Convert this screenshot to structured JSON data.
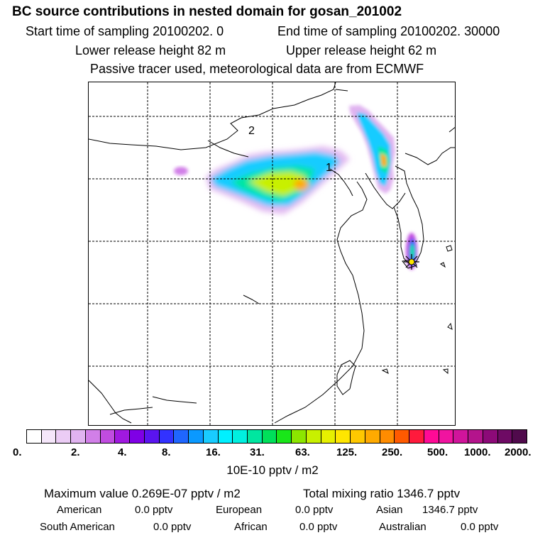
{
  "header": {
    "title": "BC  source contributions in nested domain for gosan_201002",
    "sampling_start": "Start time of sampling 20100202.     0",
    "sampling_end": "End time of sampling 20100202. 30000",
    "release_lower": "Lower release height   82 m",
    "release_upper": "Upper release height   62 m",
    "tracer_note": "Passive tracer used, meteorological data are from ECMWF"
  },
  "map": {
    "labels": [
      "1",
      "2"
    ],
    "receptor_icon": "star-marker-icon"
  },
  "colorbar": {
    "colors": [
      "#ffffff",
      "#f5e6fa",
      "#ebccf5",
      "#e0b3f0",
      "#d17fe8",
      "#c04ce0",
      "#a019e0",
      "#7f00e6",
      "#5a14f0",
      "#3232ff",
      "#1f66ff",
      "#0a99ff",
      "#19ccff",
      "#00f0ff",
      "#00f0e0",
      "#00e6a0",
      "#00e05a",
      "#19e619",
      "#8ce600",
      "#c8f000",
      "#e6f000",
      "#ffe600",
      "#ffc800",
      "#ffaa00",
      "#ff8c00",
      "#ff5a00",
      "#ff1a3c",
      "#ff0a96",
      "#f014a0",
      "#d0149b",
      "#b4148c",
      "#8c0a78",
      "#6e0a64",
      "#500a4c"
    ],
    "ticks": [
      "0.",
      "2.",
      "4.",
      "8.",
      "16.",
      "31.",
      "63.",
      "125.",
      "250.",
      "500.",
      "1000.",
      "2000."
    ],
    "unit_label": "10E-10 pptv / m2"
  },
  "summary": {
    "max_value": "Maximum value  0.269E-07 pptv / m2",
    "total_mixing": "Total mixing ratio     1346.7 pptv",
    "regions": [
      {
        "name": "American",
        "value": "0.0 pptv"
      },
      {
        "name": "European",
        "value": "0.0 pptv"
      },
      {
        "name": "Asian",
        "value": "1346.7 pptv"
      },
      {
        "name": "South American",
        "value": "0.0 pptv"
      },
      {
        "name": "African",
        "value": "0.0 pptv"
      },
      {
        "name": "Australian",
        "value": "0.0 pptv"
      }
    ]
  }
}
